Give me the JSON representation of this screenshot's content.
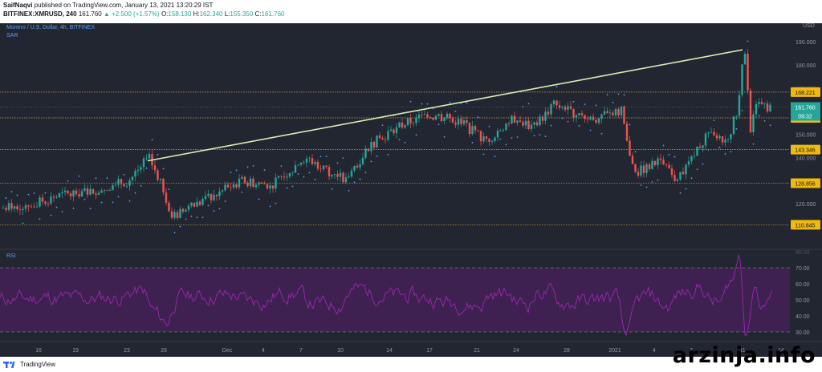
{
  "header": {
    "author": "SaifNaqvi",
    "published_line": "published on TradingView.com, January 13, 2021 13:20:29 IST",
    "symbol": "BITFINEX:XMRUSD, 240",
    "last": "161.760",
    "change": "▲ +2.500 (+1.57%)",
    "ohlc": {
      "O": "158.130",
      "H": "162.340",
      "L": "155.350",
      "C": "161.760"
    }
  },
  "chart": {
    "title": "Monero / U.S. Dollar, 4h, BITFINEX",
    "indicator": "SAR",
    "price_axis_top": "USD",
    "price_ticks": [
      "190.000",
      "180.000",
      "150.000",
      "140.000",
      "120.000"
    ],
    "price_ticks_faded": [
      "200.000",
      "170.000",
      "160.000",
      "130.000"
    ],
    "level_labels": [
      {
        "text": "168.221",
        "value": 168.221
      },
      {
        "text": "157.079",
        "value": 157.079
      },
      {
        "text": "143.346",
        "value": 143.346
      },
      {
        "text": "128.856",
        "value": 128.856
      },
      {
        "text": "110.845",
        "value": 110.845
      }
    ],
    "current_price_label": "161.760",
    "countdown_label": "09:32",
    "trendline": {
      "from_date": "Nov 25",
      "from_price": 138.5,
      "to_date": "Jan 11",
      "to_price": 186.5
    },
    "time_labels": [
      "16",
      "19",
      "23",
      "26",
      "Dec",
      "4",
      "7",
      "10",
      "14",
      "17",
      "21",
      "24",
      "28",
      "2021",
      "4",
      "7",
      "11",
      "14"
    ]
  },
  "rsi": {
    "label": "RSI",
    "ticks": [
      "70.00",
      "60.00",
      "50.00",
      "40.00",
      "30.00"
    ],
    "ticks_faded": [
      "80.00"
    ],
    "upper_band": 70,
    "lower_band": 30
  },
  "footer": {
    "brand": "TradingView"
  },
  "watermark": "arzinja.info",
  "colors": {
    "background": "#222631",
    "up_candle": "#26a69a",
    "down_candle": "#ef5350",
    "sar_dots": "#5b9cf6",
    "trendline": "#d9edb5",
    "level_line": "#e8c24a",
    "rsi_line": "#9c27b0",
    "rsi_band": "#4a1f5e",
    "price_label": "#26a69a"
  }
}
